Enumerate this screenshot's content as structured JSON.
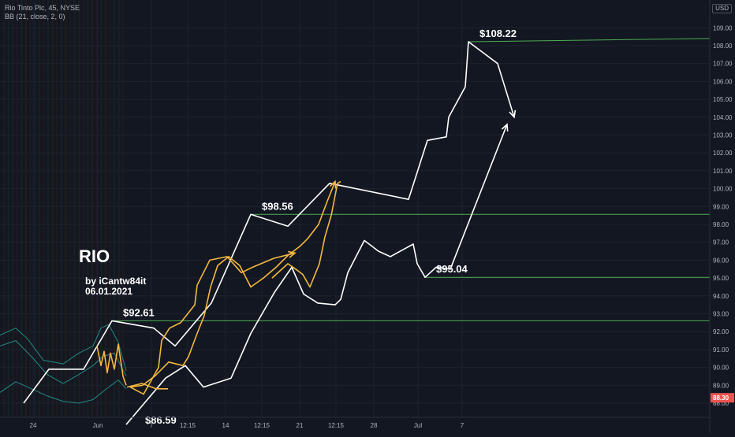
{
  "legend": {
    "symbol_line": "Rio Tinto Plc, 45, NYSE",
    "indicator_line": "BB (21, close, 2, 0)"
  },
  "currency": "USD",
  "colors": {
    "background": "#131722",
    "support_line": "#4caf50",
    "projection_white": "#ffffff",
    "projection_yellow": "#f5b83d",
    "bollinger": "#26a69a",
    "last_price_box": "#ef5350"
  },
  "annotations": {
    "ticker": "RIO",
    "author_line1": "by iCantw84it",
    "author_line2": "06.01.2021"
  },
  "last_price": {
    "label": "88.30",
    "value": 88.3
  },
  "chart_data": {
    "type": "line",
    "title": "Rio Tinto Plc, 45, NYSE",
    "ylim": [
      87.5,
      109.6
    ],
    "y_ticks": [
      88,
      89,
      90,
      91,
      92,
      93,
      94,
      95,
      96,
      97,
      98,
      99,
      100,
      101,
      102,
      103,
      104,
      105,
      106,
      107,
      108,
      109
    ],
    "y_tick_labels": [
      "88.00",
      "89.00",
      "90.00",
      "91.00",
      "92.00",
      "93.00",
      "94.00",
      "95.00",
      "96.00",
      "97.00",
      "98.00",
      "99.00",
      "100.00",
      "101.00",
      "102.00",
      "103.00",
      "104.00",
      "105.00",
      "106.00",
      "107.00",
      "108.00",
      "109.00"
    ],
    "x_labels": [
      "24",
      "Jun",
      "7",
      "12:15",
      "14",
      "12:15",
      "21",
      "12:15",
      "28",
      "Jul",
      "7"
    ],
    "x_label_slots": [
      42,
      124,
      192,
      238,
      286,
      332,
      380,
      426,
      474,
      530,
      586
    ],
    "x_range": [
      0,
      900
    ],
    "grid": true,
    "levels": [
      {
        "label": "$108.22",
        "start": 594,
        "end": 900,
        "y_start": 108.22,
        "y_end": 108.4
      },
      {
        "label": "$98.56",
        "start": 318,
        "end": 900,
        "y_start": 98.56,
        "y_end": 98.56
      },
      {
        "label": "$95.04",
        "start": 539,
        "end": 900,
        "y_start": 95.04,
        "y_end": 95.04
      },
      {
        "label": "$92.61",
        "start": 142,
        "end": 900,
        "y_start": 92.61,
        "y_end": 92.61
      },
      {
        "label": "$86.59",
        "start": 170,
        "end": 170,
        "y_start": 86.59,
        "y_end": 86.59
      }
    ],
    "series": [
      {
        "color": "#ffffff",
        "arrow": true,
        "points": [
          [
            30,
            88
          ],
          [
            62,
            89.9
          ],
          [
            106,
            89.9
          ],
          [
            142,
            92.61
          ],
          [
            195,
            92.2
          ],
          [
            222,
            91.2
          ],
          [
            268,
            93.6
          ],
          [
            318,
            98.56
          ],
          [
            365,
            97.9
          ],
          [
            418,
            100.3
          ],
          [
            518,
            99.4
          ],
          [
            542,
            102.7
          ],
          [
            566,
            102.9
          ],
          [
            569,
            104
          ],
          [
            590,
            105.7
          ],
          [
            594,
            108.22
          ],
          [
            631,
            107
          ],
          [
            652,
            104
          ]
        ]
      },
      {
        "color": "#ffffff",
        "arrow": true,
        "points": [
          [
            160,
            86.8
          ],
          [
            210,
            89.4
          ],
          [
            235,
            90.1
          ],
          [
            258,
            88.9
          ],
          [
            293,
            89.4
          ],
          [
            318,
            91.9
          ],
          [
            348,
            94.2
          ],
          [
            370,
            95.6
          ],
          [
            385,
            94.1
          ],
          [
            403,
            93.6
          ],
          [
            425,
            93.5
          ],
          [
            432,
            93.8
          ],
          [
            441,
            95.3
          ],
          [
            462,
            97.1
          ],
          [
            480,
            96.5
          ],
          [
            495,
            96.2
          ],
          [
            524,
            96.9
          ],
          [
            529,
            95.8
          ],
          [
            539,
            95.04
          ],
          [
            553,
            95.6
          ],
          [
            571,
            95.5
          ],
          [
            643,
            103.6
          ]
        ]
      },
      {
        "color": "#f5b83d",
        "arrow": true,
        "points": [
          [
            165,
            88.9
          ],
          [
            182,
            88.5
          ],
          [
            201,
            90
          ],
          [
            205,
            91.5
          ],
          [
            215,
            92.2
          ],
          [
            229,
            92.5
          ],
          [
            247,
            93.5
          ],
          [
            250,
            94.6
          ],
          [
            258,
            95.3
          ],
          [
            266,
            96
          ],
          [
            288,
            96.2
          ],
          [
            306,
            95.3
          ],
          [
            320,
            95.6
          ],
          [
            347,
            96.1
          ],
          [
            374,
            96.4
          ]
        ]
      },
      {
        "color": "#f5b83d",
        "arrow": true,
        "points": [
          [
            165,
            88.9
          ],
          [
            181,
            89
          ],
          [
            196,
            89.5
          ],
          [
            214,
            90.3
          ],
          [
            232,
            90.1
          ],
          [
            239,
            90.6
          ],
          [
            250,
            91.9
          ],
          [
            259,
            92.9
          ],
          [
            267,
            94.5
          ],
          [
            276,
            95.7
          ],
          [
            290,
            96.2
          ],
          [
            304,
            95.7
          ],
          [
            318,
            94.5
          ],
          [
            334,
            95
          ],
          [
            350,
            95.6
          ],
          [
            366,
            96.3
          ],
          [
            381,
            96.8
          ],
          [
            390,
            97.2
          ],
          [
            404,
            98
          ],
          [
            415,
            99.3
          ],
          [
            425,
            100.4
          ]
        ]
      },
      {
        "color": "#f5b83d",
        "arrow": false,
        "points": [
          [
            161,
            88.9
          ],
          [
            180,
            89.1
          ],
          [
            198,
            88.8
          ],
          [
            213,
            88.8
          ]
        ]
      },
      {
        "color": "#f5b83d",
        "arrow": false,
        "points": [
          [
            123,
            91.2
          ],
          [
            128,
            90.1
          ],
          [
            132,
            90.9
          ],
          [
            136,
            89.7
          ],
          [
            140,
            90.8
          ],
          [
            145,
            89.9
          ],
          [
            150,
            91.3
          ],
          [
            156,
            89.5
          ],
          [
            160,
            89
          ]
        ]
      },
      {
        "color": "#f5b83d",
        "arrow": false,
        "points": [
          [
            345,
            95
          ],
          [
            365,
            95.8
          ],
          [
            375,
            95.5
          ],
          [
            384,
            95.2
          ],
          [
            393,
            94.5
          ],
          [
            405,
            95.8
          ],
          [
            412,
            97.3
          ],
          [
            420,
            98.5
          ],
          [
            428,
            100.3
          ],
          [
            432,
            100.4
          ]
        ]
      }
    ],
    "bollinger_bands": [
      {
        "name": "upper",
        "points": [
          [
            0,
            91.8
          ],
          [
            20,
            92.2
          ],
          [
            35,
            91.6
          ],
          [
            55,
            90.4
          ],
          [
            80,
            90.2
          ],
          [
            100,
            90.8
          ],
          [
            118,
            91.2
          ],
          [
            128,
            92.2
          ],
          [
            138,
            92.4
          ],
          [
            150,
            91.4
          ],
          [
            160,
            89.8
          ]
        ]
      },
      {
        "name": "basis",
        "points": [
          [
            0,
            91.2
          ],
          [
            20,
            91.5
          ],
          [
            40,
            90.6
          ],
          [
            60,
            89.6
          ],
          [
            80,
            89.1
          ],
          [
            100,
            89.6
          ],
          [
            118,
            90.1
          ],
          [
            130,
            90.6
          ],
          [
            145,
            90.8
          ],
          [
            160,
            89.5
          ]
        ]
      },
      {
        "name": "lower",
        "points": [
          [
            0,
            88.6
          ],
          [
            20,
            89.2
          ],
          [
            40,
            88.8
          ],
          [
            60,
            88.4
          ],
          [
            80,
            88.1
          ],
          [
            100,
            88.0
          ],
          [
            118,
            88.2
          ],
          [
            132,
            88.7
          ],
          [
            150,
            89.3
          ],
          [
            160,
            88.8
          ]
        ]
      }
    ]
  }
}
